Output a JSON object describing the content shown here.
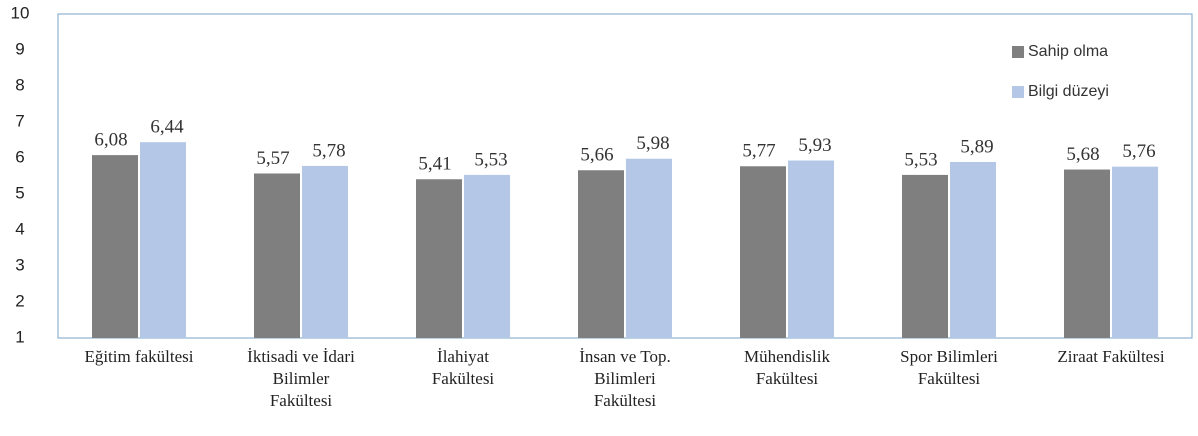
{
  "chart_data": {
    "type": "bar",
    "categories": [
      "Eğitim fakültesi",
      "İktisadi ve İdari\nBilimler\nFakültesi",
      "İlahiyat\nFakültesi",
      "İnsan ve Top.\nBilimleri\nFakültesi",
      "Mühendislik\nFakültesi",
      "Spor Bilimleri\nFakültesi",
      "Ziraat Fakültesi"
    ],
    "series": [
      {
        "name": "Sahip olma",
        "color": "#7f7f7f",
        "values": [
          6.08,
          5.57,
          5.41,
          5.66,
          5.77,
          5.53,
          5.68
        ],
        "value_labels": [
          "6,08",
          "5,57",
          "5,41",
          "5,66",
          "5,77",
          "5,53",
          "5,68"
        ]
      },
      {
        "name": "Bilgi düzeyi",
        "color": "#b4c7e7",
        "values": [
          6.44,
          5.78,
          5.53,
          5.98,
          5.93,
          5.89,
          5.76
        ],
        "value_labels": [
          "6,44",
          "5,78",
          "5,53",
          "5,98",
          "5,93",
          "5,89",
          "5,76"
        ]
      }
    ],
    "ylim": [
      1,
      10
    ],
    "yticks": [
      1,
      2,
      3,
      4,
      5,
      6,
      7,
      8,
      9,
      10
    ],
    "grid": false,
    "legend": "upper right"
  }
}
